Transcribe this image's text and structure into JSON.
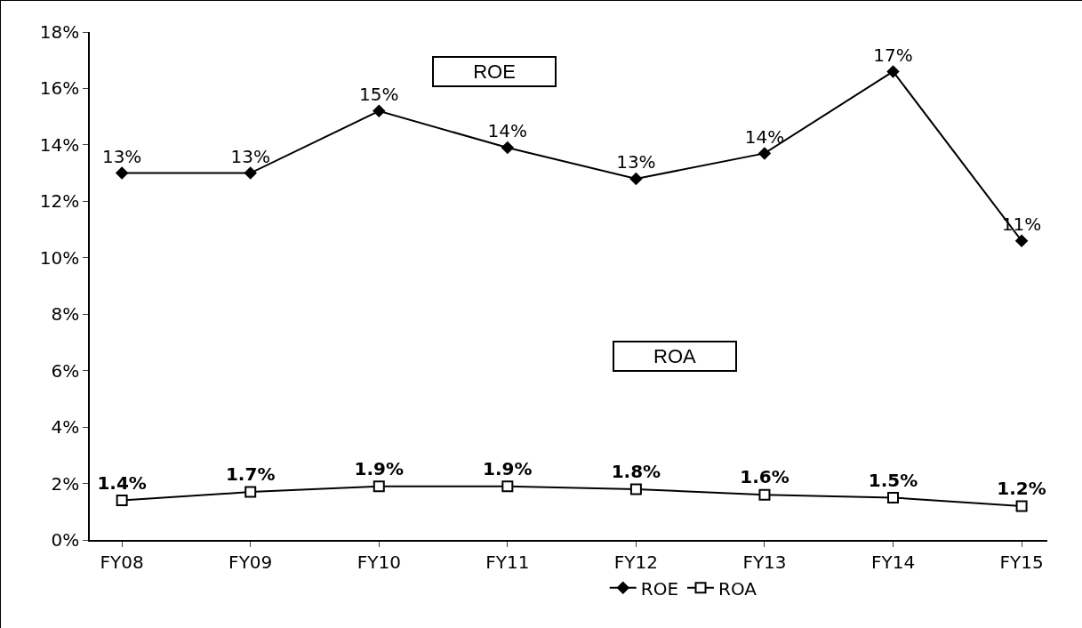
{
  "chart_data": {
    "type": "line",
    "categories": [
      "FY08",
      "FY09",
      "FY10",
      "FY11",
      "FY12",
      "FY13",
      "FY14",
      "FY15"
    ],
    "series": [
      {
        "name": "ROE",
        "color": "#000000",
        "marker": "diamond",
        "values": [
          13.0,
          13.0,
          15.2,
          13.9,
          12.8,
          13.7,
          16.6,
          10.6
        ],
        "value_labels": [
          "13%",
          "13%",
          "15%",
          "14%",
          "13%",
          "14%",
          "17%",
          "11%"
        ]
      },
      {
        "name": "ROA",
        "color": "#000000",
        "marker": "square",
        "values": [
          1.4,
          1.7,
          1.9,
          1.9,
          1.8,
          1.6,
          1.5,
          1.2
        ],
        "value_labels": [
          "1.4%",
          "1.7%",
          "1.9%",
          "1.9%",
          "1.8%",
          "1.6%",
          "1.5%",
          "1.2%"
        ]
      }
    ],
    "ylim": [
      0,
      18
    ],
    "yticks": [
      {
        "value": 0,
        "label": "0%"
      },
      {
        "value": 2,
        "label": "2%"
      },
      {
        "value": 4,
        "label": "4%"
      },
      {
        "value": 6,
        "label": "6%"
      },
      {
        "value": 8,
        "label": "8%"
      },
      {
        "value": 10,
        "label": "10%"
      },
      {
        "value": 12,
        "label": "12%"
      },
      {
        "value": 14,
        "label": "14%"
      },
      {
        "value": 16,
        "label": "16%"
      },
      {
        "value": 18,
        "label": "18%"
      }
    ],
    "grid": false,
    "legend": "bottom",
    "line_style": "solid",
    "annotations": [
      "ROE",
      "ROA"
    ]
  }
}
